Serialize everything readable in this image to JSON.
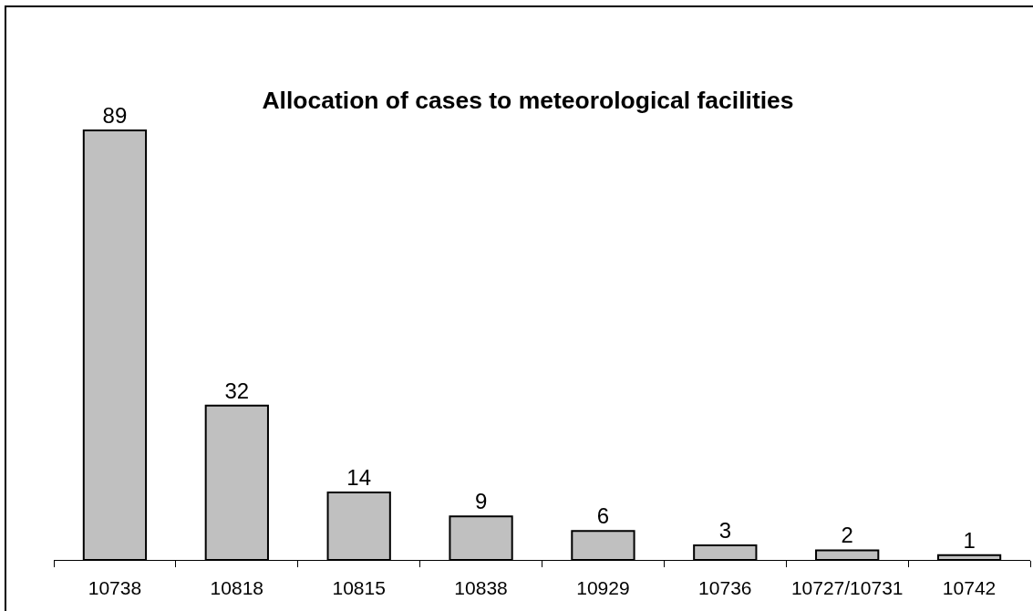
{
  "chart_data": {
    "type": "bar",
    "title": "Allocation of cases to meteorological facilities",
    "categories": [
      "10738",
      "10818",
      "10815",
      "10838",
      "10929",
      "10736",
      "10727/10731",
      "10742"
    ],
    "values": [
      89,
      32,
      14,
      9,
      6,
      3,
      2,
      1
    ],
    "color": "#c0c0c0",
    "data_labels": true,
    "tick_labels": "x"
  }
}
